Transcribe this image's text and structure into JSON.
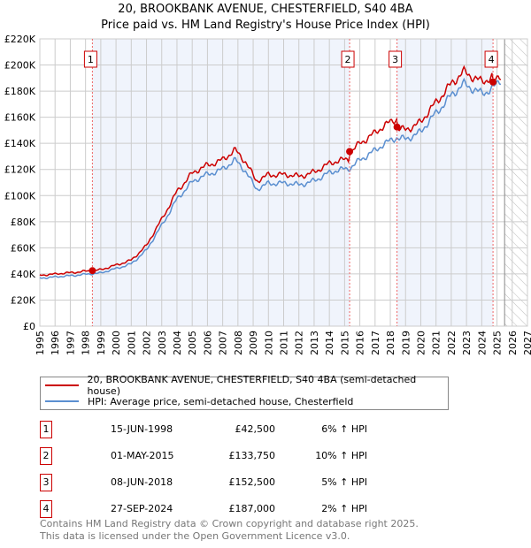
{
  "chart_data": {
    "type": "line",
    "title": "20, BROOKBANK AVENUE, CHESTERFIELD, S40 4BA",
    "subtitle": "Price paid vs. HM Land Registry's House Price Index (HPI)",
    "xlim": [
      1995,
      2027
    ],
    "ylim": [
      0,
      220000
    ],
    "x_ticks": [
      "1995",
      "1996",
      "1997",
      "1998",
      "1999",
      "2000",
      "2001",
      "2002",
      "2003",
      "2004",
      "2005",
      "2006",
      "2007",
      "2008",
      "2009",
      "2010",
      "2011",
      "2012",
      "2013",
      "2014",
      "2015",
      "2016",
      "2017",
      "2018",
      "2019",
      "2020",
      "2021",
      "2022",
      "2023",
      "2024",
      "2025",
      "2026",
      "2027"
    ],
    "y_ticks": [
      "£0",
      "£20K",
      "£40K",
      "£60K",
      "£80K",
      "£100K",
      "£120K",
      "£140K",
      "£160K",
      "£180K",
      "£200K",
      "£220K"
    ],
    "grid": true,
    "forecast_from": 2025.5,
    "series": [
      {
        "name": "20, BROOKBANK AVENUE, CHESTERFIELD, S40 4BA (semi-detached house)",
        "color": "#cc0000"
      },
      {
        "name": "HPI: Average price, semi-detached house, Chesterfield",
        "color": "#5b8fd0",
        "x": [
          1995,
          1996,
          1997,
          1998,
          1999,
          2000,
          2001,
          2002,
          2003,
          2004,
          2004.5,
          2005,
          2006,
          2007,
          2007.8,
          2008.5,
          2009.2,
          2010,
          2011,
          2012,
          2013,
          2014,
          2015.3,
          2016,
          2017,
          2018.4,
          2019,
          2020,
          2021,
          2022,
          2022.8,
          2023.5,
          2024,
          2024.7,
          2025.3
        ],
        "y": [
          37000,
          37500,
          38500,
          40000,
          40500,
          44000,
          48000,
          58000,
          77000,
          98000,
          104000,
          110000,
          116000,
          121000,
          127000,
          118000,
          105000,
          110000,
          109000,
          108000,
          112000,
          117000,
          121000,
          128000,
          134000,
          145000,
          144000,
          148000,
          163000,
          178000,
          185000,
          180000,
          178000,
          183000,
          190000
        ]
      }
    ],
    "sales": [
      {
        "label": "1",
        "date": "15-JUN-1998",
        "x": 1998.45,
        "price": 42500,
        "price_text": "£42,500",
        "hpi_text": "6% ↑ HPI"
      },
      {
        "label": "2",
        "date": "01-MAY-2015",
        "x": 2015.33,
        "price": 133750,
        "price_text": "£133,750",
        "hpi_text": "10% ↑ HPI"
      },
      {
        "label": "3",
        "date": "08-JUN-2018",
        "x": 2018.44,
        "price": 152500,
        "price_text": "£152,500",
        "hpi_text": "5% ↑ HPI"
      },
      {
        "label": "4",
        "date": "27-SEP-2024",
        "x": 2024.74,
        "price": 187000,
        "price_text": "£187,000",
        "hpi_text": "2% ↑ HPI"
      }
    ]
  },
  "footer": {
    "line1": "Contains HM Land Registry data © Crown copyright and database right 2025.",
    "line2": "This data is licensed under the Open Government Licence v3.0."
  }
}
